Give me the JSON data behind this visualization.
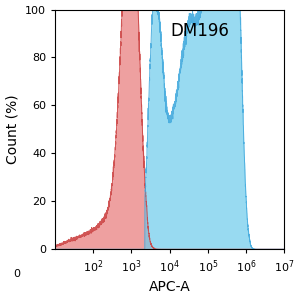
{
  "title": "DM196",
  "xlabel": "APC-A",
  "ylabel": "Count (%)",
  "ylim": [
    0,
    100
  ],
  "yticks": [
    0,
    20,
    40,
    60,
    80,
    100
  ],
  "red_color": "#E87878",
  "red_edge_color": "#CC4444",
  "blue_color": "#6CCBEC",
  "blue_edge_color": "#44AADD",
  "red_alpha": 0.7,
  "blue_alpha": 0.7,
  "title_fontsize": 12,
  "label_fontsize": 10,
  "tick_fontsize": 8,
  "background_color": "#ffffff"
}
